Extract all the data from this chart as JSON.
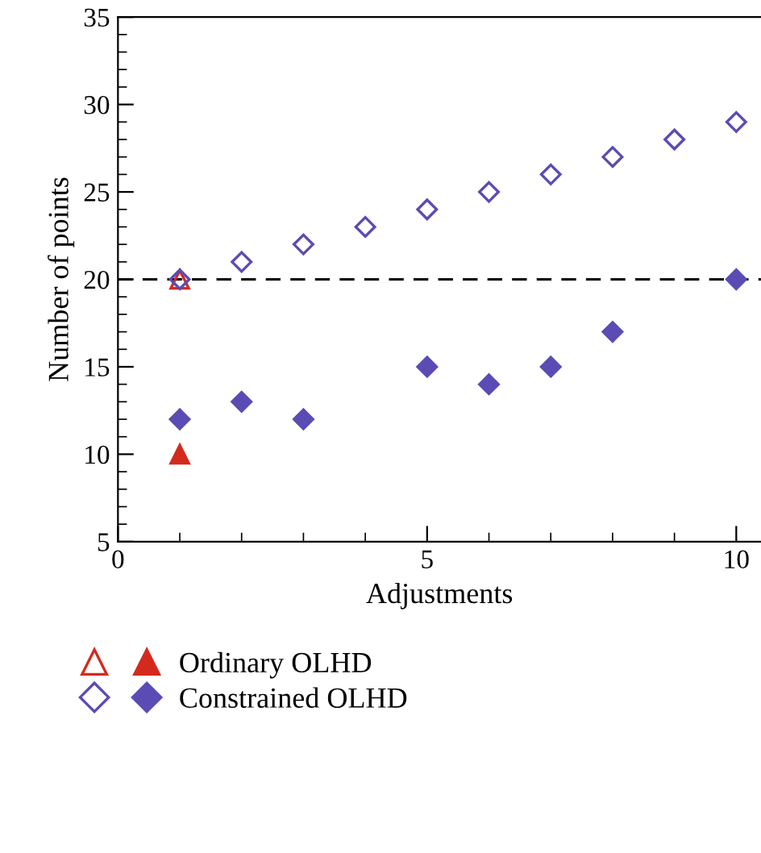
{
  "chart_data": {
    "type": "scatter",
    "xlabel": "Adjustments",
    "ylabel": "Number of points",
    "xlim": [
      0,
      10.4
    ],
    "ylim": [
      5,
      35
    ],
    "xticks": [
      0,
      5,
      10
    ],
    "yticks": [
      5,
      10,
      15,
      20,
      25,
      30,
      35
    ],
    "grid": false,
    "legend": "bottom",
    "series": [
      {
        "color": "#d42a1e",
        "marker": "triangle",
        "x": [
          1
        ],
        "values": [
          20
        ]
      },
      {
        "name": "Ordinary OLHD",
        "color": "#d42a1e",
        "marker": "triangle",
        "x": [
          1
        ],
        "values": [
          10
        ]
      },
      {
        "color": "#5a4cb4",
        "marker": "diamond",
        "x": [
          1,
          2,
          3,
          4,
          5,
          6,
          7,
          8,
          9,
          10
        ],
        "values": [
          20,
          21,
          22,
          23,
          24,
          25,
          26,
          27,
          28,
          29
        ]
      },
      {
        "name": "Constrained OLHD",
        "color": "#5a4cb4",
        "marker": "diamond",
        "x": [
          1,
          2,
          3,
          5,
          6,
          7,
          8,
          10
        ],
        "values": [
          12,
          13,
          12,
          15,
          14,
          15,
          17,
          20
        ]
      }
    ],
    "ref_lines": [
      {
        "axis": "y",
        "value": 20,
        "color": "#000000",
        "line_style": "dashed"
      }
    ]
  }
}
